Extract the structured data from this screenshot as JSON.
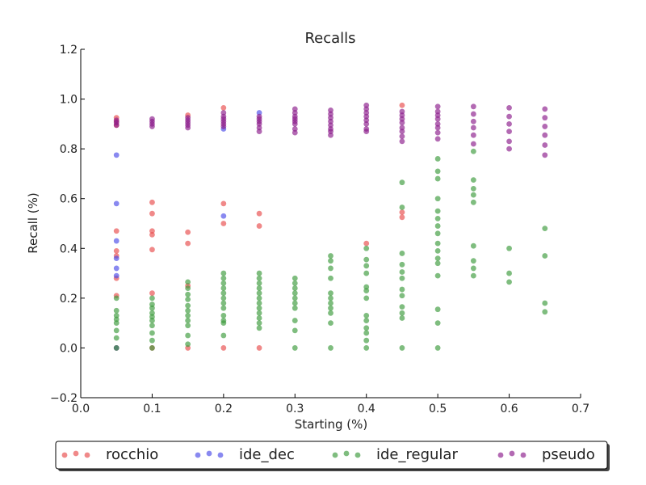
{
  "chart_data": {
    "type": "scatter",
    "title": "Recalls",
    "xlabel": "Starting (%)",
    "ylabel": "Recall (%)",
    "xlim": [
      0.0,
      0.7
    ],
    "ylim": [
      -0.2,
      1.2
    ],
    "xticks": [
      "0.0",
      "0.1",
      "0.2",
      "0.3",
      "0.4",
      "0.5",
      "0.6",
      "0.7"
    ],
    "yticks": [
      "−0.2",
      "0.0",
      "0.2",
      "0.4",
      "0.6",
      "0.8",
      "1.0",
      "1.2"
    ],
    "grid": false,
    "legend_position": "below plot, centered, single row",
    "series": [
      {
        "name": "rocchio",
        "color": "#e84a4a",
        "points": [
          [
            0.05,
            0.925
          ],
          [
            0.05,
            0.91
          ],
          [
            0.05,
            0.895
          ],
          [
            0.05,
            0.47
          ],
          [
            0.05,
            0.39
          ],
          [
            0.05,
            0.37
          ],
          [
            0.05,
            0.28
          ],
          [
            0.05,
            0.21
          ],
          [
            0.05,
            0.0
          ],
          [
            0.1,
            0.585
          ],
          [
            0.1,
            0.54
          ],
          [
            0.1,
            0.47
          ],
          [
            0.1,
            0.455
          ],
          [
            0.1,
            0.395
          ],
          [
            0.1,
            0.22
          ],
          [
            0.1,
            0.0
          ],
          [
            0.15,
            0.935
          ],
          [
            0.15,
            0.465
          ],
          [
            0.15,
            0.42
          ],
          [
            0.15,
            0.25
          ],
          [
            0.15,
            0.0
          ],
          [
            0.2,
            0.965
          ],
          [
            0.2,
            0.58
          ],
          [
            0.2,
            0.5
          ],
          [
            0.2,
            0.0
          ],
          [
            0.25,
            0.54
          ],
          [
            0.25,
            0.49
          ],
          [
            0.25,
            0.0
          ],
          [
            0.4,
            0.42
          ],
          [
            0.45,
            0.975
          ],
          [
            0.45,
            0.545
          ],
          [
            0.45,
            0.525
          ]
        ]
      },
      {
        "name": "ide_dec",
        "color": "#4a4ae8",
        "points": [
          [
            0.05,
            0.775
          ],
          [
            0.05,
            0.58
          ],
          [
            0.05,
            0.43
          ],
          [
            0.05,
            0.36
          ],
          [
            0.05,
            0.32
          ],
          [
            0.05,
            0.29
          ],
          [
            0.05,
            0.0
          ],
          [
            0.2,
            0.53
          ],
          [
            0.2,
            0.88
          ],
          [
            0.25,
            0.945
          ]
        ]
      },
      {
        "name": "ide_regular",
        "color": "#3a9a3a",
        "points": [
          [
            0.05,
            0.2
          ],
          [
            0.05,
            0.15
          ],
          [
            0.05,
            0.13
          ],
          [
            0.05,
            0.115
          ],
          [
            0.05,
            0.1
          ],
          [
            0.05,
            0.07
          ],
          [
            0.05,
            0.04
          ],
          [
            0.05,
            0.0
          ],
          [
            0.1,
            0.2
          ],
          [
            0.1,
            0.175
          ],
          [
            0.1,
            0.16
          ],
          [
            0.1,
            0.14
          ],
          [
            0.1,
            0.125
          ],
          [
            0.1,
            0.11
          ],
          [
            0.1,
            0.09
          ],
          [
            0.1,
            0.06
          ],
          [
            0.1,
            0.03
          ],
          [
            0.1,
            0.0
          ],
          [
            0.15,
            0.265
          ],
          [
            0.15,
            0.24
          ],
          [
            0.15,
            0.215
          ],
          [
            0.15,
            0.195
          ],
          [
            0.15,
            0.17
          ],
          [
            0.15,
            0.15
          ],
          [
            0.15,
            0.13
          ],
          [
            0.15,
            0.11
          ],
          [
            0.15,
            0.09
          ],
          [
            0.15,
            0.05
          ],
          [
            0.15,
            0.015
          ],
          [
            0.2,
            0.3
          ],
          [
            0.2,
            0.28
          ],
          [
            0.2,
            0.26
          ],
          [
            0.2,
            0.24
          ],
          [
            0.2,
            0.22
          ],
          [
            0.2,
            0.2
          ],
          [
            0.2,
            0.18
          ],
          [
            0.2,
            0.16
          ],
          [
            0.2,
            0.13
          ],
          [
            0.2,
            0.11
          ],
          [
            0.2,
            0.1
          ],
          [
            0.2,
            0.05
          ],
          [
            0.25,
            0.3
          ],
          [
            0.25,
            0.28
          ],
          [
            0.25,
            0.26
          ],
          [
            0.25,
            0.24
          ],
          [
            0.25,
            0.22
          ],
          [
            0.25,
            0.2
          ],
          [
            0.25,
            0.18
          ],
          [
            0.25,
            0.16
          ],
          [
            0.25,
            0.14
          ],
          [
            0.25,
            0.12
          ],
          [
            0.25,
            0.1
          ],
          [
            0.25,
            0.08
          ],
          [
            0.3,
            0.28
          ],
          [
            0.3,
            0.26
          ],
          [
            0.3,
            0.24
          ],
          [
            0.3,
            0.22
          ],
          [
            0.3,
            0.2
          ],
          [
            0.3,
            0.18
          ],
          [
            0.3,
            0.16
          ],
          [
            0.3,
            0.11
          ],
          [
            0.3,
            0.07
          ],
          [
            0.3,
            0.0
          ],
          [
            0.35,
            0.37
          ],
          [
            0.35,
            0.35
          ],
          [
            0.35,
            0.32
          ],
          [
            0.35,
            0.28
          ],
          [
            0.35,
            0.22
          ],
          [
            0.35,
            0.2
          ],
          [
            0.35,
            0.18
          ],
          [
            0.35,
            0.16
          ],
          [
            0.35,
            0.14
          ],
          [
            0.35,
            0.1
          ],
          [
            0.35,
            0.0
          ],
          [
            0.4,
            0.4
          ],
          [
            0.4,
            0.355
          ],
          [
            0.4,
            0.33
          ],
          [
            0.4,
            0.3
          ],
          [
            0.4,
            0.245
          ],
          [
            0.4,
            0.23
          ],
          [
            0.4,
            0.2
          ],
          [
            0.4,
            0.13
          ],
          [
            0.4,
            0.11
          ],
          [
            0.4,
            0.08
          ],
          [
            0.4,
            0.06
          ],
          [
            0.4,
            0.03
          ],
          [
            0.4,
            0.0
          ],
          [
            0.45,
            0.665
          ],
          [
            0.45,
            0.565
          ],
          [
            0.45,
            0.38
          ],
          [
            0.45,
            0.335
          ],
          [
            0.45,
            0.305
          ],
          [
            0.45,
            0.28
          ],
          [
            0.45,
            0.235
          ],
          [
            0.45,
            0.21
          ],
          [
            0.45,
            0.165
          ],
          [
            0.45,
            0.14
          ],
          [
            0.45,
            0.12
          ],
          [
            0.45,
            0.0
          ],
          [
            0.5,
            0.76
          ],
          [
            0.5,
            0.71
          ],
          [
            0.5,
            0.68
          ],
          [
            0.5,
            0.6
          ],
          [
            0.5,
            0.55
          ],
          [
            0.5,
            0.52
          ],
          [
            0.5,
            0.49
          ],
          [
            0.5,
            0.46
          ],
          [
            0.5,
            0.42
          ],
          [
            0.5,
            0.39
          ],
          [
            0.5,
            0.36
          ],
          [
            0.5,
            0.34
          ],
          [
            0.5,
            0.29
          ],
          [
            0.5,
            0.155
          ],
          [
            0.5,
            0.1
          ],
          [
            0.5,
            0.0
          ],
          [
            0.55,
            0.79
          ],
          [
            0.55,
            0.675
          ],
          [
            0.55,
            0.64
          ],
          [
            0.55,
            0.615
          ],
          [
            0.55,
            0.585
          ],
          [
            0.55,
            0.41
          ],
          [
            0.55,
            0.35
          ],
          [
            0.55,
            0.32
          ],
          [
            0.55,
            0.29
          ],
          [
            0.6,
            0.4
          ],
          [
            0.6,
            0.3
          ],
          [
            0.6,
            0.265
          ],
          [
            0.65,
            0.48
          ],
          [
            0.65,
            0.37
          ],
          [
            0.65,
            0.18
          ],
          [
            0.65,
            0.145
          ]
        ]
      },
      {
        "name": "pseudo",
        "color": "#8a1a8a",
        "points": [
          [
            0.05,
            0.915
          ],
          [
            0.05,
            0.905
          ],
          [
            0.05,
            0.895
          ],
          [
            0.1,
            0.92
          ],
          [
            0.1,
            0.91
          ],
          [
            0.1,
            0.9
          ],
          [
            0.1,
            0.89
          ],
          [
            0.15,
            0.925
          ],
          [
            0.15,
            0.915
          ],
          [
            0.15,
            0.905
          ],
          [
            0.15,
            0.895
          ],
          [
            0.15,
            0.885
          ],
          [
            0.2,
            0.945
          ],
          [
            0.2,
            0.93
          ],
          [
            0.2,
            0.92
          ],
          [
            0.2,
            0.91
          ],
          [
            0.2,
            0.9
          ],
          [
            0.2,
            0.89
          ],
          [
            0.25,
            0.93
          ],
          [
            0.25,
            0.92
          ],
          [
            0.25,
            0.91
          ],
          [
            0.25,
            0.9
          ],
          [
            0.25,
            0.885
          ],
          [
            0.25,
            0.87
          ],
          [
            0.3,
            0.96
          ],
          [
            0.3,
            0.945
          ],
          [
            0.3,
            0.93
          ],
          [
            0.3,
            0.92
          ],
          [
            0.3,
            0.91
          ],
          [
            0.3,
            0.9
          ],
          [
            0.3,
            0.88
          ],
          [
            0.3,
            0.865
          ],
          [
            0.35,
            0.955
          ],
          [
            0.35,
            0.94
          ],
          [
            0.35,
            0.925
          ],
          [
            0.35,
            0.91
          ],
          [
            0.35,
            0.895
          ],
          [
            0.35,
            0.88
          ],
          [
            0.35,
            0.87
          ],
          [
            0.35,
            0.855
          ],
          [
            0.4,
            0.975
          ],
          [
            0.4,
            0.96
          ],
          [
            0.4,
            0.945
          ],
          [
            0.4,
            0.93
          ],
          [
            0.4,
            0.915
          ],
          [
            0.4,
            0.9
          ],
          [
            0.4,
            0.88
          ],
          [
            0.4,
            0.87
          ],
          [
            0.45,
            0.95
          ],
          [
            0.45,
            0.935
          ],
          [
            0.45,
            0.92
          ],
          [
            0.45,
            0.905
          ],
          [
            0.45,
            0.885
          ],
          [
            0.45,
            0.87
          ],
          [
            0.45,
            0.85
          ],
          [
            0.45,
            0.83
          ],
          [
            0.5,
            0.97
          ],
          [
            0.5,
            0.95
          ],
          [
            0.5,
            0.935
          ],
          [
            0.5,
            0.92
          ],
          [
            0.5,
            0.9
          ],
          [
            0.5,
            0.885
          ],
          [
            0.5,
            0.865
          ],
          [
            0.5,
            0.84
          ],
          [
            0.55,
            0.97
          ],
          [
            0.55,
            0.94
          ],
          [
            0.55,
            0.91
          ],
          [
            0.55,
            0.885
          ],
          [
            0.55,
            0.855
          ],
          [
            0.55,
            0.82
          ],
          [
            0.6,
            0.965
          ],
          [
            0.6,
            0.93
          ],
          [
            0.6,
            0.9
          ],
          [
            0.6,
            0.87
          ],
          [
            0.6,
            0.83
          ],
          [
            0.6,
            0.8
          ],
          [
            0.65,
            0.96
          ],
          [
            0.65,
            0.925
          ],
          [
            0.65,
            0.89
          ],
          [
            0.65,
            0.855
          ],
          [
            0.65,
            0.815
          ],
          [
            0.65,
            0.775
          ]
        ]
      }
    ]
  }
}
